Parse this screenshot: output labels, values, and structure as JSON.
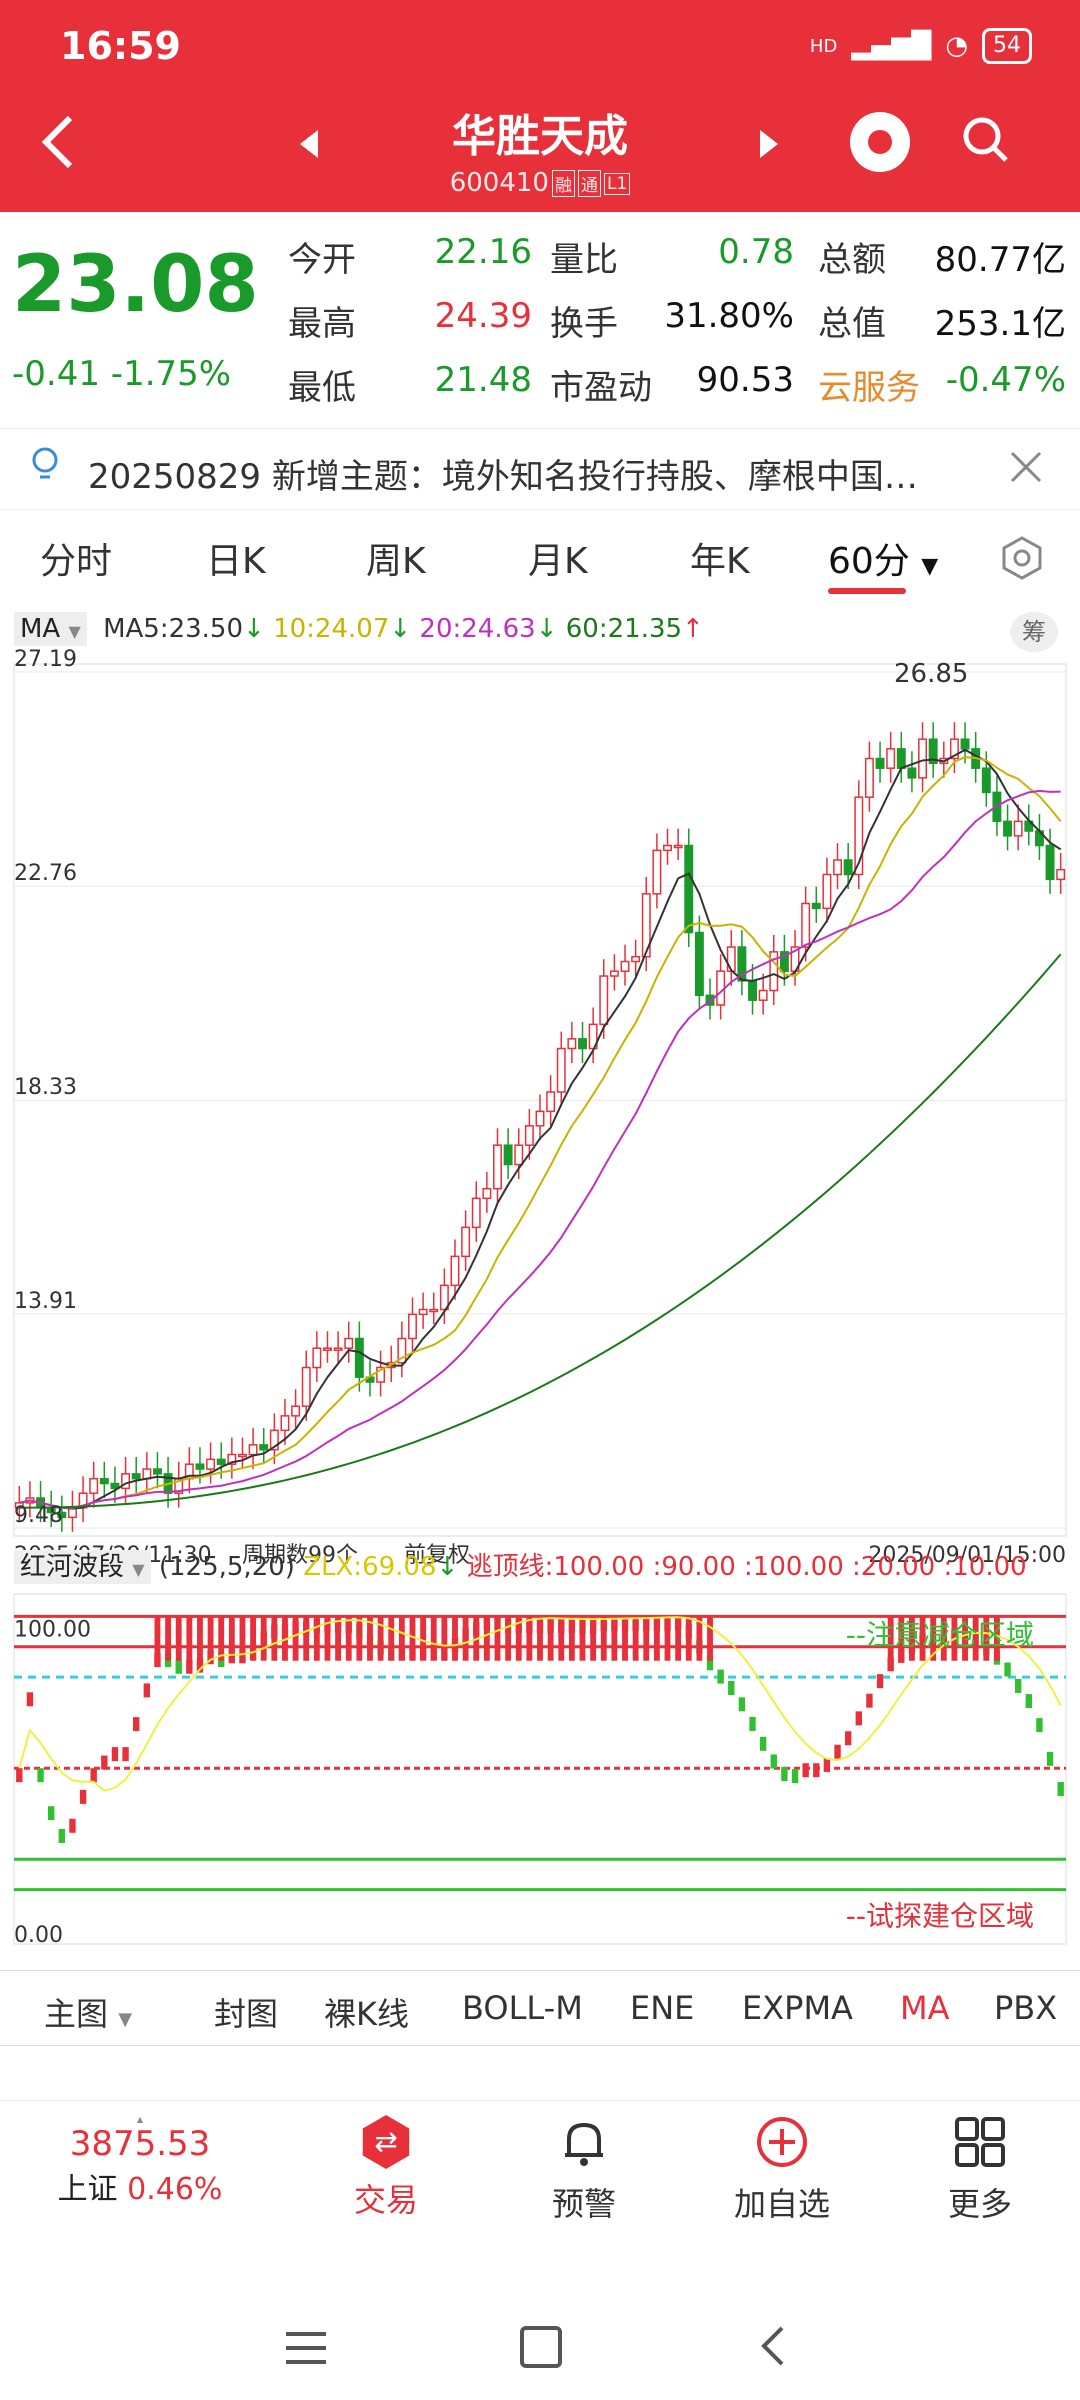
{
  "status": {
    "time": "16:59",
    "signal": "HD",
    "battery": "54"
  },
  "header": {
    "title": "华胜天成",
    "code": "600410",
    "tags": [
      "融",
      "通",
      "L1"
    ]
  },
  "quote": {
    "price": "23.08",
    "change": "-0.41",
    "change_pct": "-1.75%",
    "fields": [
      {
        "label": "今开",
        "value": "22.16",
        "color": "green"
      },
      {
        "label": "量比",
        "value": "0.78",
        "color": "green"
      },
      {
        "label": "总额",
        "value": "80.77亿",
        "color": "black"
      },
      {
        "label": "最高",
        "value": "24.39",
        "color": "red"
      },
      {
        "label": "换手",
        "value": "31.80%",
        "color": "black"
      },
      {
        "label": "总值",
        "value": "253.1亿",
        "color": "black"
      },
      {
        "label": "最低",
        "value": "21.48",
        "color": "green"
      },
      {
        "label": "市盈动",
        "value": "90.53",
        "color": "black"
      },
      {
        "label": "云服务",
        "value": "-0.47%",
        "color": "green"
      }
    ]
  },
  "news": {
    "text": "20250829 新增主题：境外知名投行持股、摩根中国…"
  },
  "period_tabs": [
    "分时",
    "日K",
    "周K",
    "月K",
    "年K",
    "60分"
  ],
  "ma_legend": {
    "type": "MA",
    "ma5": "MA5:23.50",
    "ma10": "10:24.07",
    "ma20": "20:24.63",
    "ma60": "60:21.35"
  },
  "chip_label": "筹",
  "chart_data": {
    "type": "candlestick",
    "y_ticks": [
      "27.19",
      "22.76",
      "18.33",
      "13.91",
      "9.48"
    ],
    "ylim": [
      9.48,
      27.19
    ],
    "high_label": "26.85",
    "x_start": "2025/07/29/11:30",
    "x_end": "2025/09/01/15:00",
    "period_count": "周期数99个",
    "adjust": "前复权",
    "closes": [
      10.0,
      10.1,
      9.9,
      9.8,
      9.7,
      9.9,
      10.2,
      10.5,
      10.4,
      10.3,
      10.6,
      10.5,
      10.7,
      10.6,
      10.2,
      10.5,
      10.8,
      10.7,
      10.9,
      10.8,
      11.0,
      11.0,
      11.2,
      11.1,
      11.5,
      11.8,
      12.0,
      12.8,
      13.2,
      13.2,
      13.2,
      13.4,
      12.6,
      12.5,
      12.8,
      12.9,
      13.4,
      13.9,
      14.0,
      14.0,
      14.5,
      15.1,
      15.7,
      16.3,
      16.5,
      17.4,
      17.0,
      17.4,
      17.8,
      18.1,
      18.5,
      19.4,
      19.6,
      19.4,
      19.9,
      20.9,
      21.0,
      21.2,
      21.3,
      22.6,
      23.5,
      23.6,
      23.6,
      21.8,
      20.5,
      20.3,
      21.0,
      21.5,
      20.8,
      20.4,
      20.6,
      21.4,
      21.0,
      21.5,
      22.4,
      22.3,
      23.0,
      23.3,
      23.0,
      24.6,
      25.4,
      25.2,
      25.6,
      25.2,
      25.0,
      25.8,
      25.3,
      25.4,
      25.8,
      25.6,
      25.2,
      24.7,
      24.1,
      23.8,
      24.1,
      23.9,
      23.6,
      22.9,
      23.1
    ]
  },
  "indicator": {
    "name": "红河波段",
    "params": "(125,5,20)",
    "zlx": "ZLX:69.08",
    "taoding": "逃顶线:100.00 :90.00 :100.00 :20.00 :10.00",
    "top_value": "100.00",
    "bottom_value": "0.00",
    "reduce_label": "--注意减仓区域",
    "build_label": "--试探建仓区域"
  },
  "indicator_tabs": [
    "主图",
    "封图",
    "裸K线",
    "BOLL-M",
    "ENE",
    "EXPMA",
    "MA",
    "PBX"
  ],
  "bottom_nav": {
    "index_value": "3875.53",
    "index_name": "上证",
    "index_pct": "0.46%",
    "items": [
      "交易",
      "预警",
      "加自选",
      "更多"
    ]
  }
}
